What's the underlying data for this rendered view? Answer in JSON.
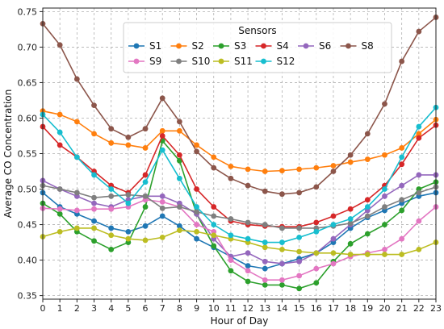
{
  "chart_data": {
    "type": "line",
    "title": "",
    "xlabel": "Hour of Day",
    "ylabel": "Average CO Concentration",
    "x": [
      0,
      1,
      2,
      3,
      4,
      5,
      6,
      7,
      8,
      9,
      10,
      11,
      12,
      13,
      14,
      15,
      16,
      17,
      18,
      19,
      20,
      21,
      22,
      23
    ],
    "xlim": [
      0,
      23
    ],
    "ylim": [
      0.345,
      0.755
    ],
    "yticks": [
      0.35,
      0.4,
      0.45,
      0.5,
      0.55,
      0.6,
      0.65,
      0.7,
      0.75
    ],
    "ytick_labels": [
      "0.35",
      "0.40",
      "0.45",
      "0.50",
      "0.55",
      "0.60",
      "0.65",
      "0.70",
      "0.75"
    ],
    "xtick_labels": [
      "0",
      "1",
      "2",
      "3",
      "4",
      "5",
      "6",
      "7",
      "8",
      "9",
      "10",
      "11",
      "12",
      "13",
      "14",
      "15",
      "16",
      "17",
      "18",
      "19",
      "20",
      "21",
      "22",
      "23"
    ],
    "grid": true,
    "legend": {
      "title": "Sensors",
      "placement": "top-center",
      "columns": 6
    },
    "series": [
      {
        "name": "S1",
        "color": "#1f77b4",
        "values": [
          0.495,
          0.475,
          0.465,
          0.455,
          0.445,
          0.44,
          0.448,
          0.462,
          0.448,
          0.43,
          0.418,
          0.405,
          0.392,
          0.388,
          0.395,
          0.402,
          0.41,
          0.425,
          0.445,
          0.46,
          0.47,
          0.48,
          0.49,
          0.495
        ]
      },
      {
        "name": "S2",
        "color": "#ff7f0e",
        "values": [
          0.61,
          0.605,
          0.595,
          0.578,
          0.565,
          0.562,
          0.558,
          0.582,
          0.582,
          0.562,
          0.545,
          0.532,
          0.528,
          0.525,
          0.526,
          0.528,
          0.53,
          0.533,
          0.538,
          0.542,
          0.548,
          0.558,
          0.578,
          0.598
        ]
      },
      {
        "name": "S3",
        "color": "#2ca02c",
        "values": [
          0.48,
          0.465,
          0.44,
          0.427,
          0.415,
          0.425,
          0.475,
          0.568,
          0.54,
          0.465,
          0.42,
          0.385,
          0.37,
          0.365,
          0.365,
          0.36,
          0.368,
          0.398,
          0.423,
          0.437,
          0.45,
          0.47,
          0.5,
          0.51
        ]
      },
      {
        "name": "S4",
        "color": "#d62728",
        "values": [
          0.588,
          0.562,
          0.545,
          0.525,
          0.505,
          0.495,
          0.52,
          0.575,
          0.548,
          0.5,
          0.475,
          0.455,
          0.45,
          0.448,
          0.447,
          0.447,
          0.453,
          0.462,
          0.472,
          0.485,
          0.505,
          0.535,
          0.572,
          0.59
        ]
      },
      {
        "name": "S6",
        "color": "#9467bd",
        "values": [
          0.512,
          0.5,
          0.49,
          0.48,
          0.475,
          0.485,
          0.49,
          0.49,
          0.48,
          0.465,
          0.43,
          0.405,
          0.41,
          0.398,
          0.395,
          0.398,
          0.41,
          0.43,
          0.45,
          0.47,
          0.49,
          0.505,
          0.52,
          0.52
        ]
      },
      {
        "name": "S8",
        "color": "#8c564b",
        "values": [
          0.733,
          0.703,
          0.655,
          0.618,
          0.585,
          0.573,
          0.585,
          0.628,
          0.595,
          0.553,
          0.53,
          0.515,
          0.505,
          0.497,
          0.493,
          0.495,
          0.503,
          0.525,
          0.548,
          0.578,
          0.62,
          0.68,
          0.722,
          0.742
        ]
      },
      {
        "name": "S9",
        "color": "#e377c2",
        "values": [
          0.473,
          0.472,
          0.47,
          0.472,
          0.472,
          0.475,
          0.485,
          0.482,
          0.475,
          0.45,
          0.44,
          0.4,
          0.385,
          0.372,
          0.372,
          0.378,
          0.388,
          0.395,
          0.405,
          0.41,
          0.415,
          0.43,
          0.455,
          0.475
        ]
      },
      {
        "name": "S10",
        "color": "#7f7f7f",
        "values": [
          0.505,
          0.5,
          0.495,
          0.488,
          0.49,
          0.492,
          0.49,
          0.473,
          0.475,
          0.468,
          0.462,
          0.458,
          0.453,
          0.45,
          0.445,
          0.445,
          0.445,
          0.448,
          0.452,
          0.462,
          0.475,
          0.485,
          0.495,
          0.503
        ]
      },
      {
        "name": "S11",
        "color": "#bcbd22",
        "values": [
          0.433,
          0.44,
          0.445,
          0.445,
          0.435,
          0.43,
          0.428,
          0.432,
          0.442,
          0.44,
          0.435,
          0.43,
          0.425,
          0.418,
          0.415,
          0.412,
          0.41,
          0.41,
          0.408,
          0.408,
          0.408,
          0.408,
          0.415,
          0.425
        ]
      },
      {
        "name": "S12",
        "color": "#17becf",
        "values": [
          0.605,
          0.58,
          0.545,
          0.52,
          0.5,
          0.48,
          0.51,
          0.555,
          0.515,
          0.475,
          0.45,
          0.435,
          0.43,
          0.425,
          0.425,
          0.432,
          0.44,
          0.45,
          0.458,
          0.475,
          0.5,
          0.545,
          0.588,
          0.615
        ]
      }
    ]
  }
}
